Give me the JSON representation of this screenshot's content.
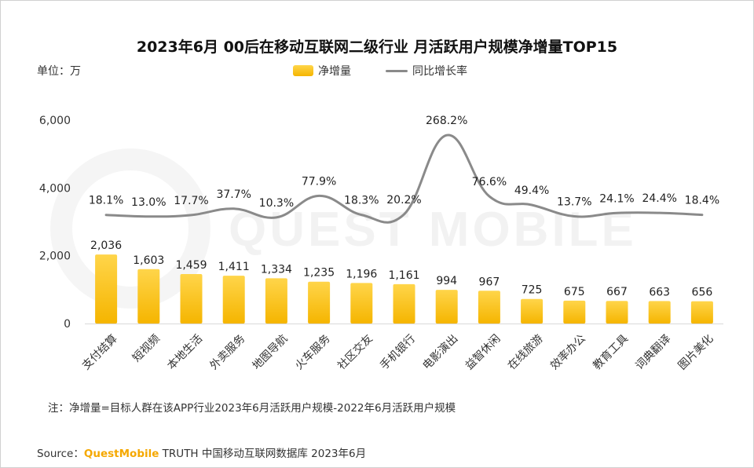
{
  "title": "2023年6月 00后在移动互联网二级行业 月活跃用户规模净增量TOP15",
  "unit_label": "单位：万",
  "note": "注：净增量=目标人群在该APP行业2023年6月活跃用户规模-2022年6月活跃用户规模",
  "source": {
    "prefix": "Source：",
    "brand": "QuestMobile",
    "suffix": " TRUTH 中国移动互联网数据库 2023年6月"
  },
  "watermark": "QUEST MOBILE",
  "colors": {
    "bar_top": "#FFD54A",
    "bar_bottom": "#F5B500",
    "line": "#8a8a8a",
    "brand": "#F5A800"
  },
  "chart_data": {
    "type": "bar",
    "categories": [
      "支付结算",
      "短视频",
      "本地生活",
      "外卖服务",
      "地图导航",
      "火车服务",
      "社区交友",
      "手机银行",
      "电影演出",
      "益智休闲",
      "在线旅游",
      "效率办公",
      "教育工具",
      "词典翻译",
      "图片美化"
    ],
    "series": [
      {
        "name": "净增量",
        "type": "bar",
        "axis": "left",
        "values": [
          2036,
          1603,
          1459,
          1411,
          1334,
          1235,
          1196,
          1161,
          994,
          967,
          725,
          675,
          667,
          663,
          656
        ],
        "labels": [
          "2,036",
          "1,603",
          "1,459",
          "1,411",
          "1,334",
          "1,235",
          "1,196",
          "1,161",
          "994",
          "967",
          "725",
          "675",
          "667",
          "663",
          "656"
        ]
      },
      {
        "name": "同比增长率",
        "type": "line",
        "axis": "right-hidden",
        "smooth": true,
        "values": [
          18.1,
          13.0,
          17.7,
          37.7,
          10.3,
          77.9,
          18.3,
          20.2,
          268.2,
          76.6,
          49.4,
          13.7,
          24.1,
          24.4,
          18.4
        ],
        "labels": [
          "18.1%",
          "13.0%",
          "17.7%",
          "37.7%",
          "10.3%",
          "77.9%",
          "18.3%",
          "20.2%",
          "268.2%",
          "76.6%",
          "49.4%",
          "13.7%",
          "24.1%",
          "24.4%",
          "18.4%"
        ]
      }
    ],
    "y_ticks": [
      "0",
      "2,000",
      "4,000",
      "6,000"
    ],
    "ylim": [
      0,
      6000
    ],
    "grid": false,
    "legend": "top-center"
  }
}
